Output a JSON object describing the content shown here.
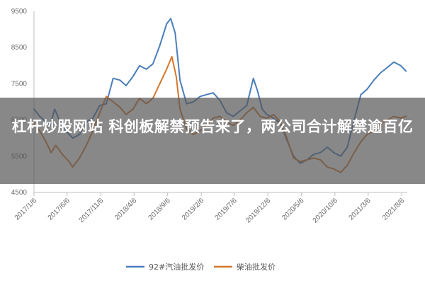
{
  "article_title": "杠杆炒股网站 科创板解禁预告来了，两公司合计解禁逾百亿",
  "chart_data": {
    "type": "line",
    "ylim": [
      4500,
      9500
    ],
    "yticks": [
      4500,
      5500,
      6500,
      7500,
      8500,
      9500
    ],
    "xlim": [
      "2017-01-06",
      "2021-08-31"
    ],
    "xticks": [
      "2017/1/6",
      "2017/6/6",
      "2017/11/6",
      "2018/4/6",
      "2018/9/6",
      "2019/2/6",
      "2019/7/6",
      "2019/12/6",
      "2020/5/6",
      "2020/10/6",
      "2021/3/6",
      "2021/8/6"
    ],
    "grid": false,
    "legend_position": "bottom",
    "series": [
      {
        "name": "92#汽油批发价",
        "color": "#4a7ebb",
        "points": [
          [
            "2017-01-06",
            6800
          ],
          [
            "2017-02-01",
            6600
          ],
          [
            "2017-03-01",
            6450
          ],
          [
            "2017-03-20",
            6350
          ],
          [
            "2017-04-10",
            6800
          ],
          [
            "2017-05-01",
            6500
          ],
          [
            "2017-06-01",
            6200
          ],
          [
            "2017-07-01",
            6000
          ],
          [
            "2017-08-01",
            6100
          ],
          [
            "2017-09-01",
            6450
          ],
          [
            "2017-10-01",
            6550
          ],
          [
            "2017-11-01",
            6900
          ],
          [
            "2017-12-01",
            6950
          ],
          [
            "2018-01-01",
            7650
          ],
          [
            "2018-02-01",
            7600
          ],
          [
            "2018-03-01",
            7450
          ],
          [
            "2018-04-01",
            7700
          ],
          [
            "2018-05-01",
            8000
          ],
          [
            "2018-06-01",
            7900
          ],
          [
            "2018-07-01",
            8050
          ],
          [
            "2018-08-01",
            8550
          ],
          [
            "2018-09-01",
            9150
          ],
          [
            "2018-09-20",
            9300
          ],
          [
            "2018-10-10",
            8900
          ],
          [
            "2018-11-01",
            7600
          ],
          [
            "2018-12-01",
            6950
          ],
          [
            "2019-01-01",
            7000
          ],
          [
            "2019-02-01",
            7150
          ],
          [
            "2019-03-01",
            7200
          ],
          [
            "2019-04-01",
            7250
          ],
          [
            "2019-05-01",
            7050
          ],
          [
            "2019-06-01",
            6700
          ],
          [
            "2019-07-01",
            6600
          ],
          [
            "2019-08-01",
            6750
          ],
          [
            "2019-09-01",
            6900
          ],
          [
            "2019-10-01",
            7650
          ],
          [
            "2019-10-20",
            7300
          ],
          [
            "2019-11-10",
            6800
          ],
          [
            "2019-12-01",
            6650
          ],
          [
            "2020-01-01",
            6550
          ],
          [
            "2020-02-01",
            6400
          ],
          [
            "2020-03-01",
            5950
          ],
          [
            "2020-04-01",
            5500
          ],
          [
            "2020-05-01",
            5300
          ],
          [
            "2020-06-01",
            5400
          ],
          [
            "2020-07-01",
            5550
          ],
          [
            "2020-08-01",
            5600
          ],
          [
            "2020-09-01",
            5750
          ],
          [
            "2020-10-01",
            5600
          ],
          [
            "2020-11-01",
            5500
          ],
          [
            "2020-12-01",
            5750
          ],
          [
            "2021-01-01",
            6500
          ],
          [
            "2021-02-01",
            7200
          ],
          [
            "2021-03-01",
            7350
          ],
          [
            "2021-04-01",
            7600
          ],
          [
            "2021-05-01",
            7800
          ],
          [
            "2021-06-01",
            7950
          ],
          [
            "2021-07-01",
            8100
          ],
          [
            "2021-08-01",
            8000
          ],
          [
            "2021-08-25",
            7850
          ]
        ]
      },
      {
        "name": "柴油批发价",
        "color": "#d4772c",
        "points": [
          [
            "2017-01-06",
            6400
          ],
          [
            "2017-02-01",
            6200
          ],
          [
            "2017-03-01",
            5900
          ],
          [
            "2017-03-25",
            5600
          ],
          [
            "2017-04-15",
            5800
          ],
          [
            "2017-05-15",
            5550
          ],
          [
            "2017-06-15",
            5350
          ],
          [
            "2017-07-01",
            5200
          ],
          [
            "2017-08-01",
            5450
          ],
          [
            "2017-09-01",
            5800
          ],
          [
            "2017-10-01",
            6200
          ],
          [
            "2017-11-01",
            6700
          ],
          [
            "2017-12-01",
            7150
          ],
          [
            "2018-01-01",
            7000
          ],
          [
            "2018-02-01",
            6850
          ],
          [
            "2018-03-01",
            6650
          ],
          [
            "2018-04-01",
            6800
          ],
          [
            "2018-05-01",
            7100
          ],
          [
            "2018-06-01",
            6950
          ],
          [
            "2018-07-01",
            7100
          ],
          [
            "2018-08-01",
            7500
          ],
          [
            "2018-09-01",
            7900
          ],
          [
            "2018-09-25",
            8250
          ],
          [
            "2018-10-15",
            7700
          ],
          [
            "2018-11-01",
            6800
          ],
          [
            "2018-12-01",
            6250
          ],
          [
            "2019-01-01",
            6100
          ],
          [
            "2019-02-01",
            6200
          ],
          [
            "2019-03-01",
            6350
          ],
          [
            "2019-04-01",
            6550
          ],
          [
            "2019-05-01",
            6600
          ],
          [
            "2019-06-01",
            6450
          ],
          [
            "2019-07-01",
            6350
          ],
          [
            "2019-08-01",
            6500
          ],
          [
            "2019-09-01",
            6700
          ],
          [
            "2019-10-01",
            6850
          ],
          [
            "2019-11-01",
            6600
          ],
          [
            "2019-12-01",
            6550
          ],
          [
            "2020-01-01",
            6650
          ],
          [
            "2020-02-01",
            6450
          ],
          [
            "2020-03-01",
            6000
          ],
          [
            "2020-04-01",
            5450
          ],
          [
            "2020-05-01",
            5350
          ],
          [
            "2020-06-01",
            5400
          ],
          [
            "2020-07-01",
            5450
          ],
          [
            "2020-08-01",
            5400
          ],
          [
            "2020-09-01",
            5200
          ],
          [
            "2020-10-01",
            5150
          ],
          [
            "2020-11-01",
            5050
          ],
          [
            "2020-12-01",
            5250
          ],
          [
            "2021-01-01",
            5600
          ],
          [
            "2021-02-01",
            5900
          ],
          [
            "2021-03-01",
            6100
          ],
          [
            "2021-04-01",
            6200
          ],
          [
            "2021-05-01",
            6400
          ],
          [
            "2021-06-01",
            6500
          ],
          [
            "2021-07-01",
            6600
          ],
          [
            "2021-08-01",
            6550
          ],
          [
            "2021-08-25",
            6600
          ]
        ]
      }
    ]
  }
}
